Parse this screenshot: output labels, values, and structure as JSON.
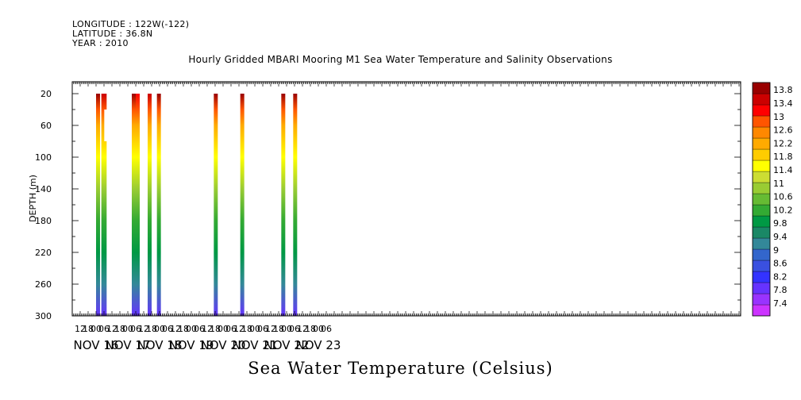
{
  "header": {
    "longitude": "LONGITUDE : 122W(-122)",
    "latitude": "LATITUDE : 36.8N",
    "year": "YEAR : 2010"
  },
  "chart_data": {
    "type": "heatmap",
    "title": "Hourly Gridded MBARI Mooring M1 Sea Water Temperature and Salinity Observations",
    "xlabel": "Sea Water Temperature (Celsius)",
    "ylabel": "DEPTH (m)",
    "ylim": [
      300,
      5
    ],
    "y_ticks": [
      20,
      60,
      100,
      140,
      180,
      220,
      260,
      300
    ],
    "x_hour_ticks": [
      "12",
      "18",
      "00",
      "06",
      "12",
      "18",
      "00",
      "06",
      "12",
      "18",
      "00",
      "06",
      "12",
      "18",
      "00",
      "06",
      "12",
      "18",
      "00",
      "06",
      "12",
      "18",
      "00",
      "06",
      "12",
      "18",
      "00",
      "06",
      "12",
      "18",
      "00",
      "06"
    ],
    "x_day_labels": [
      "NOV 16",
      "NOV 17",
      "NOV 18",
      "NOV 19",
      "NOV 20",
      "NOV 21",
      "NOV 22",
      "NOV 23"
    ],
    "colorbar": {
      "labels": [
        "7.4",
        "7.8",
        "8.2",
        "8.6",
        "9",
        "9.4",
        "9.8",
        "10.2",
        "10.6",
        "11",
        "11.4",
        "11.8",
        "12.2",
        "12.6",
        "13",
        "13.4",
        "13.8"
      ],
      "colors": [
        "#cc33ff",
        "#9933ff",
        "#6633ff",
        "#3333ff",
        "#3a50e0",
        "#3366cc",
        "#338899",
        "#1a8866",
        "#009944",
        "#33aa33",
        "#66bb33",
        "#99cc33",
        "#ccdd33",
        "#ffff00",
        "#ffcc00",
        "#ffaa00",
        "#ff8800",
        "#ff5500",
        "#ff0000",
        "#cc0000",
        "#990000"
      ]
    },
    "depth_profile": [
      {
        "depth": 20,
        "temp": 11.2
      },
      {
        "depth": 40,
        "temp": 10.7
      },
      {
        "depth": 60,
        "temp": 10.3
      },
      {
        "depth": 100,
        "temp": 9.9
      },
      {
        "depth": 140,
        "temp": 9.6
      },
      {
        "depth": 180,
        "temp": 9.2
      },
      {
        "depth": 220,
        "temp": 8.9
      },
      {
        "depth": 260,
        "temp": 8.4
      },
      {
        "depth": 300,
        "temp": 7.8
      }
    ],
    "observation_windows": [
      {
        "start": "2010-11-17 00:00",
        "end": "2010-11-17 02:00",
        "surface_temp": 12.8
      },
      {
        "start": "2010-11-17 04:00",
        "end": "2010-11-17 08:00",
        "surface_temp": 11.2,
        "gap_depth": [
          40,
          80
        ]
      },
      {
        "start": "2010-11-18 03:00",
        "end": "2010-11-18 04:00",
        "surface_temp": 11.6
      },
      {
        "start": "2010-11-18 06:00",
        "end": "2010-11-18 07:00",
        "surface_temp": 11.0
      },
      {
        "start": "2010-11-18 15:00",
        "end": "2010-11-18 18:00",
        "surface_temp": 11.2
      },
      {
        "start": "2010-11-18 22:00",
        "end": "2010-11-19 00:00",
        "surface_temp": 11.3
      },
      {
        "start": "2010-11-20 17:00",
        "end": "2010-11-20 20:00",
        "surface_temp": 12.6
      },
      {
        "start": "2010-11-21 13:00",
        "end": "2010-11-21 15:00",
        "surface_temp": 12.0
      },
      {
        "start": "2010-11-22 20:00",
        "end": "2010-11-22 22:00",
        "surface_temp": 12.3
      },
      {
        "start": "2010-11-23 05:00",
        "end": "2010-11-23 06:00",
        "surface_temp": 12.0
      }
    ]
  }
}
